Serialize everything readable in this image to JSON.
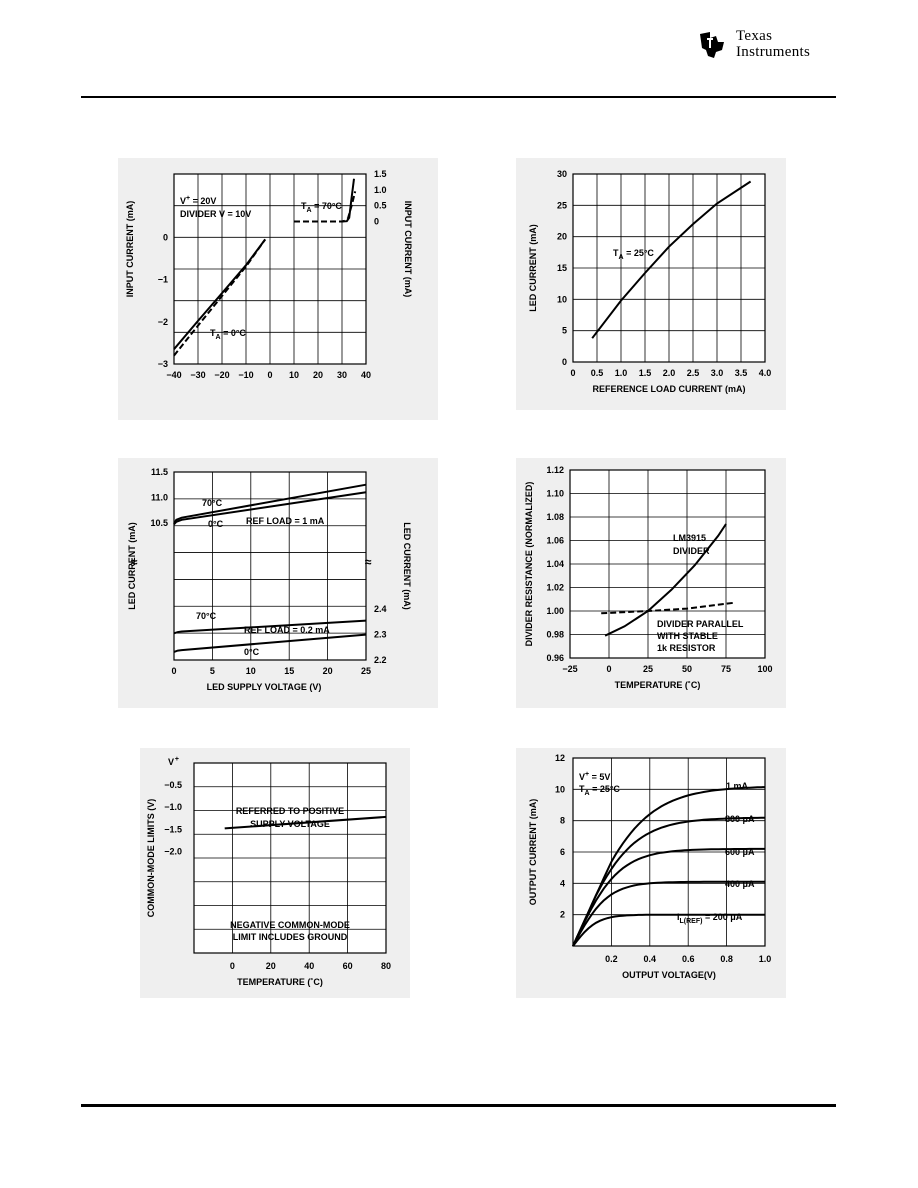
{
  "brand": {
    "logo_line1": "Texas",
    "logo_line2": "Instruments",
    "logo_icon": "ti-logo-icon",
    "color": "#000000"
  },
  "chart_data": [
    {
      "id": "chart1",
      "type": "line",
      "xlabel": "",
      "ylabel": "INPUT CURRENT (mA)",
      "y2label": "INPUT CURRENT (mA)",
      "xticks": [
        "−40",
        "−30",
        "−20",
        "−10",
        "0",
        "10",
        "20",
        "30",
        "40"
      ],
      "yticks": [
        "−3",
        "−2",
        "−1",
        "0"
      ],
      "y2ticks": [
        "0",
        "0.5",
        "1.0",
        "1.5"
      ],
      "annotations": [
        "V+ = 20V",
        "DIVIDER V = 10V",
        "TA = 70°C",
        "TA = 0°C"
      ],
      "left": {
        "xlim": [
          -40,
          0
        ],
        "ylim": [
          -3,
          1.5
        ],
        "series": [
          {
            "style": "solid",
            "x": [
              -40,
              -30,
              -20,
              -10,
              -2
            ],
            "y": [
              -2.65,
              -1.98,
              -1.32,
              -0.66,
              -0.05
            ]
          },
          {
            "style": "dashed",
            "x": [
              -40,
              -30,
              -20,
              -10,
              -2
            ],
            "y": [
              -2.8,
              -2.09,
              -1.39,
              -0.69,
              -0.05
            ]
          }
        ]
      },
      "right": {
        "xlim": [
          0,
          40
        ],
        "ylim": [
          -4.5,
          1.5
        ],
        "series": [
          {
            "style": "dashed",
            "x": [
              10,
              30,
              31,
              32.5,
              34,
              35.5
            ],
            "y": [
              0,
              0,
              0.02,
              0.1,
              0.5,
              0.95
            ]
          },
          {
            "style": "solid",
            "x": [
              30,
              32,
              33,
              34,
              35
            ],
            "y": [
              0,
              0.01,
              0.12,
              0.75,
              1.35
            ]
          }
        ]
      }
    },
    {
      "id": "chart2",
      "type": "line",
      "xlabel": "REFERENCE LOAD CURRENT (mA)",
      "ylabel": "LED CURRENT (mA)",
      "xlim": [
        0,
        4
      ],
      "ylim": [
        0,
        30
      ],
      "xticks": [
        "0",
        "0.5",
        "1.0",
        "1.5",
        "2.0",
        "2.5",
        "3.0",
        "3.5",
        "4.0"
      ],
      "yticks": [
        "0",
        "5",
        "10",
        "15",
        "20",
        "25",
        "30"
      ],
      "annotations": [
        "TA = 25°C"
      ],
      "series": [
        {
          "style": "solid",
          "x": [
            0.4,
            1.0,
            1.5,
            2.0,
            2.5,
            3.0,
            3.7
          ],
          "y": [
            3.8,
            9.8,
            14.2,
            18.4,
            22.0,
            25.3,
            28.8
          ]
        }
      ]
    },
    {
      "id": "chart3",
      "type": "line",
      "xlabel": "LED SUPPLY VOLTAGE (V)",
      "ylabel": "LED CURRENT (mA)",
      "y2label": "LED CURRENT (mA)",
      "xlim": [
        0,
        25
      ],
      "xticks": [
        "0",
        "5",
        "10",
        "15",
        "20",
        "25"
      ],
      "yticks": [
        "10.5",
        "11.0",
        "11.5"
      ],
      "y2ticks": [
        "2.2",
        "2.3",
        "2.4"
      ],
      "annotations": [
        "70°C",
        "0°C",
        "REF LOAD = 1 mA",
        "70°C",
        "REF LOAD = 0.2 mA",
        "0°C"
      ],
      "upper": {
        "ylim": [
          10.45,
          11.5
        ],
        "series": [
          {
            "name": "70°C",
            "x": [
              0,
              0.3,
              1.0,
              25
            ],
            "y": [
              10.48,
              10.56,
              10.6,
              11.25
            ]
          },
          {
            "name": "0°C",
            "x": [
              0,
              0.3,
              1.0,
              25
            ],
            "y": [
              10.47,
              10.52,
              10.56,
              11.1
            ]
          }
        ]
      },
      "lower": {
        "ylim": [
          2.2,
          2.44
        ],
        "series": [
          {
            "name": "70°C",
            "x": [
              0,
              0.5,
              1.0,
              25
            ],
            "y": [
              2.305,
              2.31,
              2.312,
              2.355
            ]
          },
          {
            "name": "0°C",
            "x": [
              0,
              0.5,
              1.0,
              25
            ],
            "y": [
              2.232,
              2.237,
              2.239,
              2.3
            ]
          }
        ]
      }
    },
    {
      "id": "chart4",
      "type": "line",
      "xlabel": "TEMPERATURE (˚C)",
      "ylabel": "DIVIDER RESISTANCE (NORMALIZED)",
      "xlim": [
        -25,
        100
      ],
      "ylim": [
        0.96,
        1.12
      ],
      "xticks": [
        "−25",
        "0",
        "25",
        "50",
        "75",
        "100"
      ],
      "yticks": [
        "0.96",
        "0.98",
        "1.00",
        "1.02",
        "1.04",
        "1.06",
        "1.08",
        "1.10",
        "1.12"
      ],
      "annotations": [
        "LM3915",
        "DIVIDER",
        "DIVIDER PARALLEL",
        "WITH STABLE",
        "1k RESISTOR"
      ],
      "series": [
        {
          "style": "solid",
          "x": [
            -2.5,
            10,
            25,
            40,
            55,
            70,
            75
          ],
          "y": [
            0.979,
            0.987,
            1.0,
            1.018,
            1.039,
            1.064,
            1.074
          ]
        },
        {
          "style": "dashed",
          "x": [
            -5,
            25,
            50,
            80
          ],
          "y": [
            0.998,
            1.0,
            1.002,
            1.007
          ]
        }
      ]
    },
    {
      "id": "chart5",
      "type": "line",
      "xlabel": "TEMPERATURE (˚C)",
      "ylabel": "COMMON-MODE LIMITS (V)",
      "xlim": [
        -20,
        80
      ],
      "ylim": [
        -4.3,
        0
      ],
      "xticks": [
        "0",
        "20",
        "40",
        "60",
        "80"
      ],
      "yticks": [
        "V+",
        "−0.5",
        "−1.0",
        "−1.5",
        "−2.0"
      ],
      "annotations": [
        "REFERRED TO POSITIVE",
        "SUPPLY VOLTAGE",
        "NEGATIVE COMMON-MODE",
        "LIMIT INCLUDES GROUND"
      ],
      "series": [
        {
          "style": "solid",
          "x": [
            -4,
            80
          ],
          "y": [
            -1.48,
            -1.22
          ]
        }
      ]
    },
    {
      "id": "chart6",
      "type": "line",
      "xlabel": "OUTPUT VOLTAGE(V)",
      "ylabel": "OUTPUT CURRENT (mA)",
      "xlim": [
        0,
        1.0
      ],
      "ylim": [
        0,
        12
      ],
      "xticks": [
        "0.2",
        "0.4",
        "0.6",
        "0.8",
        "1.0"
      ],
      "yticks": [
        "2",
        "4",
        "6",
        "8",
        "10",
        "12"
      ],
      "annotations": [
        "V+ = 5V",
        "TA = 25°C",
        "1 mA",
        "800 μA",
        "600 μA",
        "400 μA",
        "IL(REF) = 200 μA"
      ],
      "series": [
        {
          "name": "IL(REF) = 200 μA",
          "sat": 2.0,
          "k": 6.5
        },
        {
          "name": "400 μA",
          "sat": 4.1,
          "k": 5.2
        },
        {
          "name": "600 μA",
          "sat": 6.2,
          "k": 4.6
        },
        {
          "name": "800 μA",
          "sat": 8.2,
          "k": 4.1
        },
        {
          "name": "1 mA",
          "sat": 10.2,
          "k": 3.7
        }
      ]
    }
  ]
}
